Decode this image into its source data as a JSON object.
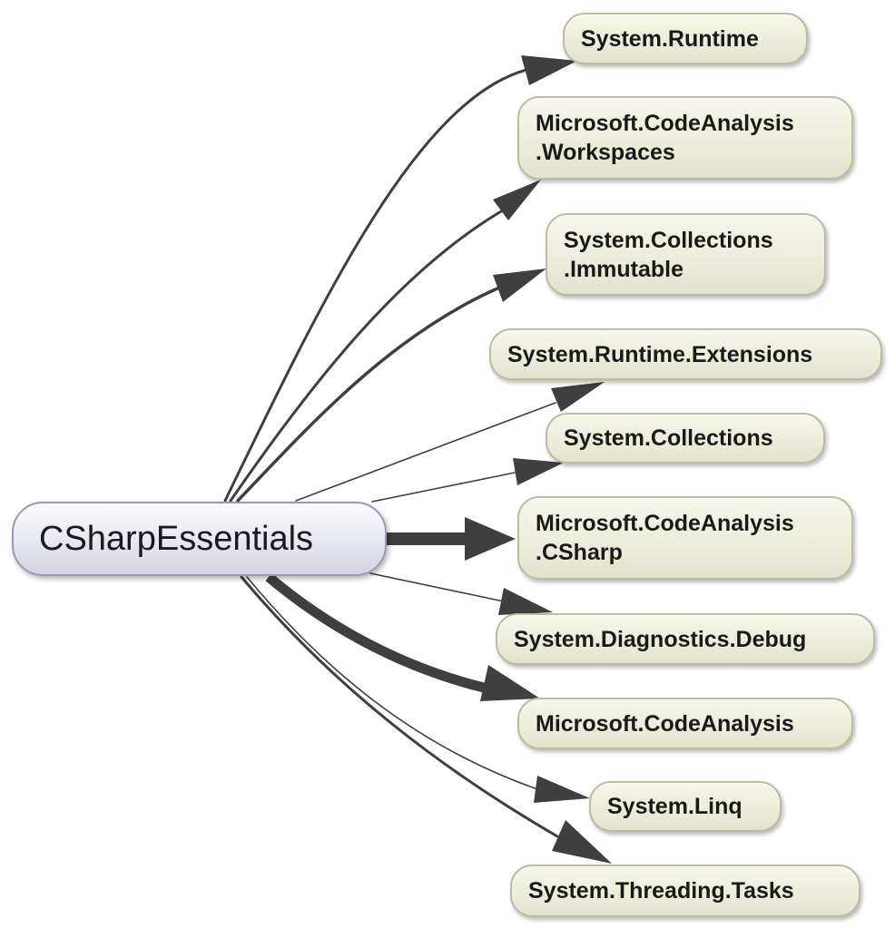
{
  "source": {
    "label": "CSharpEssentials"
  },
  "targets": [
    {
      "id": "system-runtime",
      "lines": [
        "System.Runtime"
      ]
    },
    {
      "id": "microsoft-codeanalysis-workspaces",
      "lines": [
        "Microsoft.CodeAnalysis",
        ".Workspaces"
      ]
    },
    {
      "id": "system-collections-immutable",
      "lines": [
        "System.Collections",
        ".Immutable"
      ]
    },
    {
      "id": "system-runtime-extensions",
      "lines": [
        "System.Runtime.Extensions"
      ]
    },
    {
      "id": "system-collections",
      "lines": [
        "System.Collections"
      ]
    },
    {
      "id": "microsoft-codeanalysis-csharp",
      "lines": [
        "Microsoft.CodeAnalysis",
        ".CSharp"
      ]
    },
    {
      "id": "system-diagnostics-debug",
      "lines": [
        "System.Diagnostics.Debug"
      ]
    },
    {
      "id": "microsoft-codeanalysis",
      "lines": [
        "Microsoft.CodeAnalysis"
      ]
    },
    {
      "id": "system-linq",
      "lines": [
        "System.Linq"
      ]
    },
    {
      "id": "system-threading-tasks",
      "lines": [
        "System.Threading.Tasks"
      ]
    }
  ],
  "colors": {
    "edge": "#3f3f3f",
    "node_fill": "#ededdb",
    "node_border": "#bcbca4",
    "source_fill": "#e9e9f3",
    "source_border": "#9a9ab0"
  }
}
